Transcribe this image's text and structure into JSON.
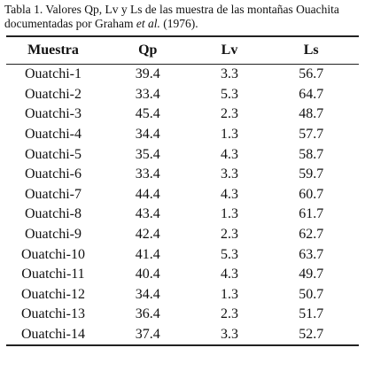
{
  "caption": {
    "before": "Tabla 1. Valores Qp, Lv y Ls de las muestra de las montañas Ouachita documentadas por Graham ",
    "italic": "et al.",
    "after": " (1976)."
  },
  "table": {
    "columns": [
      "Muestra",
      "Qp",
      "Lv",
      "Ls"
    ],
    "rows": [
      [
        "Ouatchi-1",
        39.4,
        3.3,
        56.7
      ],
      [
        "Ouatchi-2",
        33.4,
        5.3,
        64.7
      ],
      [
        "Ouatchi-3",
        45.4,
        2.3,
        48.7
      ],
      [
        "Ouatchi-4",
        34.4,
        1.3,
        57.7
      ],
      [
        "Ouatchi-5",
        35.4,
        4.3,
        58.7
      ],
      [
        "Ouatchi-6",
        33.4,
        3.3,
        59.7
      ],
      [
        "Ouatchi-7",
        44.4,
        4.3,
        60.7
      ],
      [
        "Ouatchi-8",
        43.4,
        1.3,
        61.7
      ],
      [
        "Ouatchi-9",
        42.4,
        2.3,
        62.7
      ],
      [
        "Ouatchi-10",
        41.4,
        5.3,
        63.7
      ],
      [
        "Ouatchi-11",
        40.4,
        4.3,
        49.7
      ],
      [
        "Ouatchi-12",
        34.4,
        1.3,
        50.7
      ],
      [
        "Ouatchi-13",
        36.4,
        2.3,
        51.7
      ],
      [
        "Ouatchi-14",
        37.4,
        3.3,
        52.7
      ]
    ]
  }
}
